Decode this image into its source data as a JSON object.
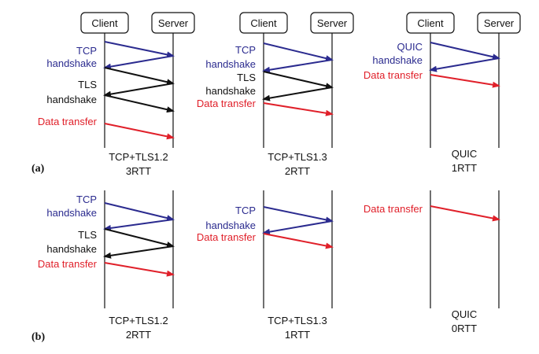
{
  "colors": {
    "blue": "#2b2b8f",
    "black": "#111111",
    "red": "#e0202a"
  },
  "row_labels": [
    "(a)",
    "(b)"
  ],
  "box_labels": {
    "client": "Client",
    "server": "Server"
  },
  "panels": [
    {
      "id": "a1",
      "caption": [
        "TCP+TLS1.2",
        "3RTT"
      ],
      "labels": [
        {
          "text": "TCP",
          "color": "blue"
        },
        {
          "text": "handshake",
          "color": "blue"
        },
        {
          "text": "TLS",
          "color": "black"
        },
        {
          "text": "handshake",
          "color": "black"
        },
        {
          "text": "Data transfer",
          "color": "red"
        }
      ]
    },
    {
      "id": "a2",
      "caption": [
        "TCP+TLS1.3",
        "2RTT"
      ],
      "labels": [
        {
          "text": "TCP",
          "color": "blue"
        },
        {
          "text": "handshake",
          "color": "blue"
        },
        {
          "text": "TLS",
          "color": "black"
        },
        {
          "text": "handshake",
          "color": "black"
        },
        {
          "text": "Data transfer",
          "color": "red"
        }
      ]
    },
    {
      "id": "a3",
      "caption": [
        "QUIC",
        "1RTT"
      ],
      "labels": [
        {
          "text": "QUIC",
          "color": "blue"
        },
        {
          "text": "handshake",
          "color": "blue"
        },
        {
          "text": "Data transfer",
          "color": "red"
        }
      ]
    },
    {
      "id": "b1",
      "caption": [
        "TCP+TLS1.2",
        "2RTT"
      ],
      "labels": [
        {
          "text": "TCP",
          "color": "blue"
        },
        {
          "text": "handshake",
          "color": "blue"
        },
        {
          "text": "TLS",
          "color": "black"
        },
        {
          "text": "handshake",
          "color": "black"
        },
        {
          "text": "Data transfer",
          "color": "red"
        }
      ]
    },
    {
      "id": "b2",
      "caption": [
        "TCP+TLS1.3",
        "1RTT"
      ],
      "labels": [
        {
          "text": "TCP",
          "color": "blue"
        },
        {
          "text": "handshake",
          "color": "blue"
        },
        {
          "text": "Data transfer",
          "color": "red"
        }
      ]
    },
    {
      "id": "b3",
      "caption": [
        "QUIC",
        "0RTT"
      ],
      "labels": [
        {
          "text": "Data transfer",
          "color": "red"
        }
      ]
    }
  ]
}
